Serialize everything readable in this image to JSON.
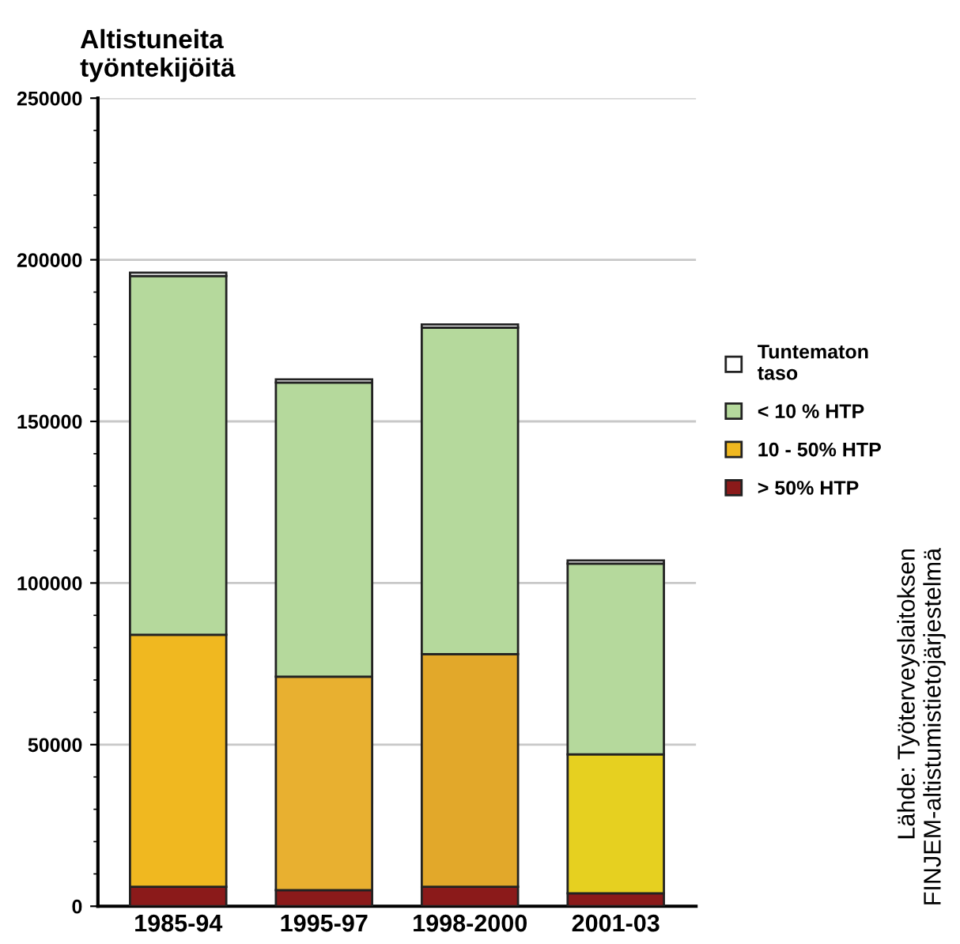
{
  "chart_data": {
    "type": "bar",
    "stacked": true,
    "ylabel": "Altistuneita\ntyöntekijöitä",
    "categories": [
      "1985-94",
      "1995-97",
      "1998-2000",
      "2001-03"
    ],
    "series": [
      {
        "name": "> 50% HTP",
        "color": "#8b1a1a",
        "values": [
          6000,
          5000,
          6000,
          4000
        ]
      },
      {
        "name": "10 - 50% HTP",
        "color": "#f0b820",
        "colors": [
          "#f0b820",
          "#e8b030",
          "#e2a82a",
          "#e6d020"
        ],
        "values": [
          78000,
          66000,
          72000,
          43000
        ]
      },
      {
        "name": "< 10 % HTP",
        "color": "#b5d99c",
        "values": [
          111000,
          91000,
          101000,
          59000
        ]
      },
      {
        "name": "Tuntematon\ntaso",
        "color": "#ffffff",
        "values": [
          1000,
          1000,
          1000,
          1000
        ]
      }
    ],
    "ylim": [
      0,
      250000
    ],
    "yticks": [
      0,
      50000,
      100000,
      150000,
      200000,
      250000
    ],
    "grid": "y",
    "legend": "right",
    "annotations": [
      "Lähde: Työterveyslaitoksen\nFINJEM-altistumistietojärjestelmä"
    ]
  }
}
